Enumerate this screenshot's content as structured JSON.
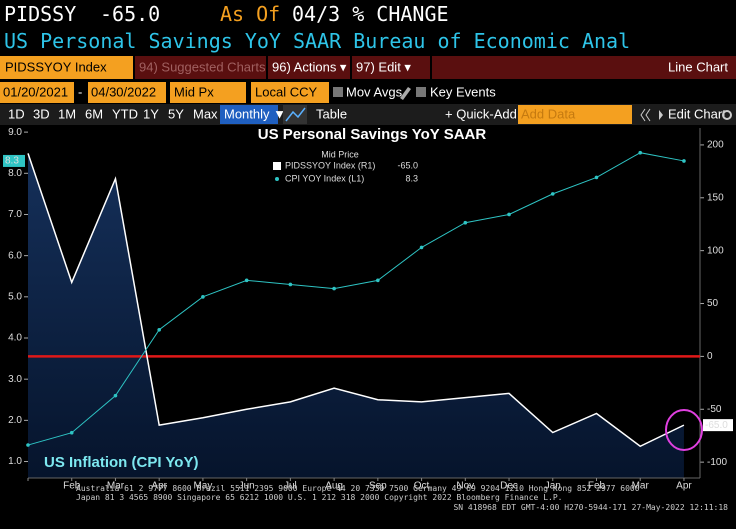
{
  "terminal": {
    "ticker": "PIDSSY",
    "price": "-65.0",
    "as_of_label": "As Of",
    "as_of_value": "04/3 % CHANGE",
    "description": "US Personal Savings YoY SAAR  Bureau of Economic Anal",
    "toolbar": {
      "security": "PIDSSYOY Index",
      "suggested": "94) Suggested Charts",
      "actions": "96) Actions ▾",
      "edit": "97) Edit ▾",
      "chart_kind": "Line Chart",
      "start_date": "01/20/2021",
      "dash": "-",
      "end_date": "04/30/2022",
      "price_field": "Mid Px",
      "currency": "Local CCY",
      "mov_avgs": "Mov Avgs",
      "key_events": "Key Events",
      "ranges": [
        "1D",
        "3D",
        "1M",
        "6M",
        "YTD",
        "1Y",
        "5Y",
        "Max"
      ],
      "frequency": "Monthly ▼",
      "table": "Table",
      "quick_add": "+ Quick-Add ▾",
      "add_data": "Add Data",
      "edit_chart": "Edit Chart"
    },
    "footer": [
      "Australia 61 2 9777 8600 Brazil 5511 2395 9000 Europe 44 20 7330 7500 Germany 49 69 9204 1210 Hong Kong 852 2977 6000",
      "Japan 81 3 4565 8900     Singapore 65 6212 1000     U.S. 1 212 318 2000     Copyright 2022 Bloomberg Finance L.P.",
      "SN 418968 EDT  GMT-4:00 H270-5944-171 27-May-2022 12:11:18"
    ]
  },
  "chart_data": {
    "type": "line",
    "title": "US Personal Savings YoY SAAR",
    "legend_title": "Mid Price",
    "annotation": "US Inflation (CPI YoY)",
    "categories": [
      null,
      "Feb",
      "Mar",
      "Apr",
      "May",
      "Jun",
      "Jul",
      "Aug",
      "Sep",
      "Oct",
      "Nov",
      "Dec",
      "Jan",
      "Feb",
      "Mar",
      "Apr"
    ],
    "series": [
      {
        "name": "PIDSSYOY Index (R1)",
        "last_label": "-65.0",
        "color": "#ffffff",
        "axis": "y2",
        "area": true,
        "values": [
          192,
          70,
          168,
          -65,
          -58,
          -50,
          -43,
          -30,
          -41,
          -43,
          -39,
          -35,
          -72,
          -54,
          -85,
          -65
        ]
      },
      {
        "name": "CPI YOY Index (L1)",
        "last_label": "8.3",
        "color": "#2ec4c4",
        "axis": "y",
        "values": [
          1.4,
          1.7,
          2.6,
          4.2,
          5.0,
          5.4,
          5.3,
          5.2,
          5.4,
          6.2,
          6.8,
          7.0,
          7.5,
          7.9,
          8.5,
          8.3
        ]
      }
    ],
    "ylim": [
      0.6,
      9.1
    ],
    "yticks": [
      {
        "value": 1,
        "label": "1.0"
      },
      {
        "value": 2,
        "label": "2.0"
      },
      {
        "value": 3,
        "label": "3.0"
      },
      {
        "value": 4,
        "label": "4.0"
      },
      {
        "value": 5,
        "label": "5.0"
      },
      {
        "value": 6,
        "label": "6.0"
      },
      {
        "value": 7,
        "label": "7.0"
      },
      {
        "value": 8,
        "label": "8.0"
      },
      {
        "value": 9,
        "label": "9.0"
      }
    ],
    "y2lim": [
      -115,
      216
    ],
    "y2ticks": [
      -100,
      -50,
      0,
      50,
      100,
      150,
      200
    ],
    "zero_line_color": "#e01818"
  }
}
